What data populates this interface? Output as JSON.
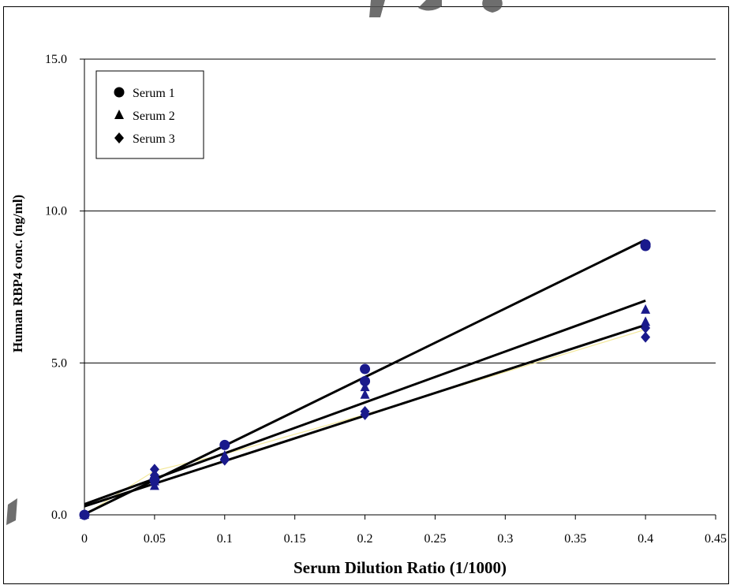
{
  "chart_data": {
    "type": "scatter",
    "title": "",
    "xlabel": "Serum Dilution Ratio (1/1000)",
    "ylabel": "Human RBP4 conc. (ng/ml)",
    "xlim": [
      0,
      0.45
    ],
    "ylim": [
      0,
      15
    ],
    "x_ticks": [
      "0",
      "0.05",
      "0.1",
      "0.15",
      "0.2",
      "0.25",
      "0.3",
      "0.35",
      "0.4",
      "0.45"
    ],
    "y_ticks": [
      "0.0",
      "5.0",
      "10.0",
      "15.0"
    ],
    "grid": "horizontal",
    "legend_position": "top-left",
    "marker_color": "#1a1a8c",
    "line_color": "#000000",
    "series": [
      {
        "name": "Serum 1",
        "marker": "circle",
        "points": [
          [
            0,
            0.0
          ],
          [
            0.05,
            1.15
          ],
          [
            0.1,
            2.3
          ],
          [
            0.2,
            4.8
          ],
          [
            0.2,
            4.4
          ],
          [
            0.4,
            8.9
          ],
          [
            0.4,
            8.85
          ]
        ],
        "fit": [
          [
            0,
            0.02
          ],
          [
            0.4,
            9.05
          ]
        ]
      },
      {
        "name": "Serum 2",
        "marker": "triangle",
        "points": [
          [
            0,
            0.0
          ],
          [
            0.05,
            0.95
          ],
          [
            0.05,
            1.1
          ],
          [
            0.1,
            1.95
          ],
          [
            0.2,
            4.2
          ],
          [
            0.2,
            3.95
          ],
          [
            0.4,
            6.75
          ],
          [
            0.4,
            6.35
          ]
        ],
        "fit": [
          [
            0,
            0.35
          ],
          [
            0.4,
            7.05
          ]
        ]
      },
      {
        "name": "Serum 3",
        "marker": "diamond",
        "points": [
          [
            0,
            0.0
          ],
          [
            0.05,
            1.5
          ],
          [
            0.05,
            1.3
          ],
          [
            0.1,
            1.8
          ],
          [
            0.2,
            3.3
          ],
          [
            0.2,
            3.4
          ],
          [
            0.4,
            6.15
          ],
          [
            0.4,
            5.85
          ]
        ],
        "fit": [
          [
            0,
            0.28
          ],
          [
            0.4,
            6.25
          ]
        ]
      }
    ]
  }
}
